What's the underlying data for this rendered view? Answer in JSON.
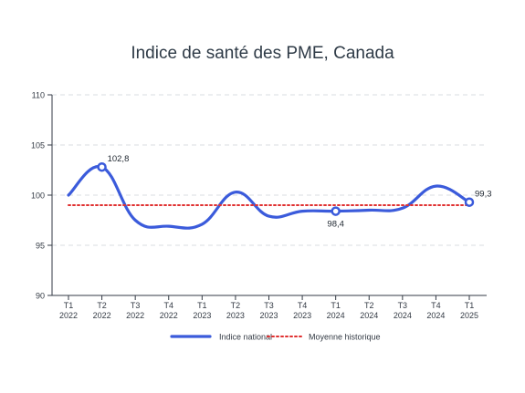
{
  "chart_data": {
    "type": "line",
    "title": "Indice de santé des PME, Canada",
    "xlabel": "",
    "ylabel": "",
    "ylim": [
      90,
      110
    ],
    "yticks": [
      90,
      95,
      100,
      105,
      110
    ],
    "grid": true,
    "legend_position": "bottom",
    "categories": [
      [
        "T1",
        "2022"
      ],
      [
        "T2",
        "2022"
      ],
      [
        "T3",
        "2022"
      ],
      [
        "T4",
        "2022"
      ],
      [
        "T1",
        "2023"
      ],
      [
        "T2",
        "2023"
      ],
      [
        "T3",
        "2023"
      ],
      [
        "T4",
        "2023"
      ],
      [
        "T1",
        "2024"
      ],
      [
        "T2",
        "2024"
      ],
      [
        "T3",
        "2024"
      ],
      [
        "T4",
        "2024"
      ],
      [
        "T1",
        "2025"
      ]
    ],
    "series": [
      {
        "name": "Indice national",
        "color": "#3b5bdb",
        "style": "solid",
        "values": [
          100.0,
          102.8,
          97.5,
          96.9,
          97.1,
          100.3,
          97.9,
          98.4,
          98.4,
          98.5,
          98.7,
          100.9,
          99.3
        ]
      },
      {
        "name": "Moyenne historique",
        "color": "#e03131",
        "style": "dotted",
        "values": [
          99,
          99,
          99,
          99,
          99,
          99,
          99,
          99,
          99,
          99,
          99,
          99,
          99
        ]
      }
    ],
    "annotations": [
      {
        "index": 1,
        "series": 0,
        "label": "102,8",
        "position": "above-right"
      },
      {
        "index": 8,
        "series": 0,
        "label": "98,4",
        "position": "below"
      },
      {
        "index": 12,
        "series": 0,
        "label": "99,3",
        "position": "above-right"
      }
    ]
  }
}
